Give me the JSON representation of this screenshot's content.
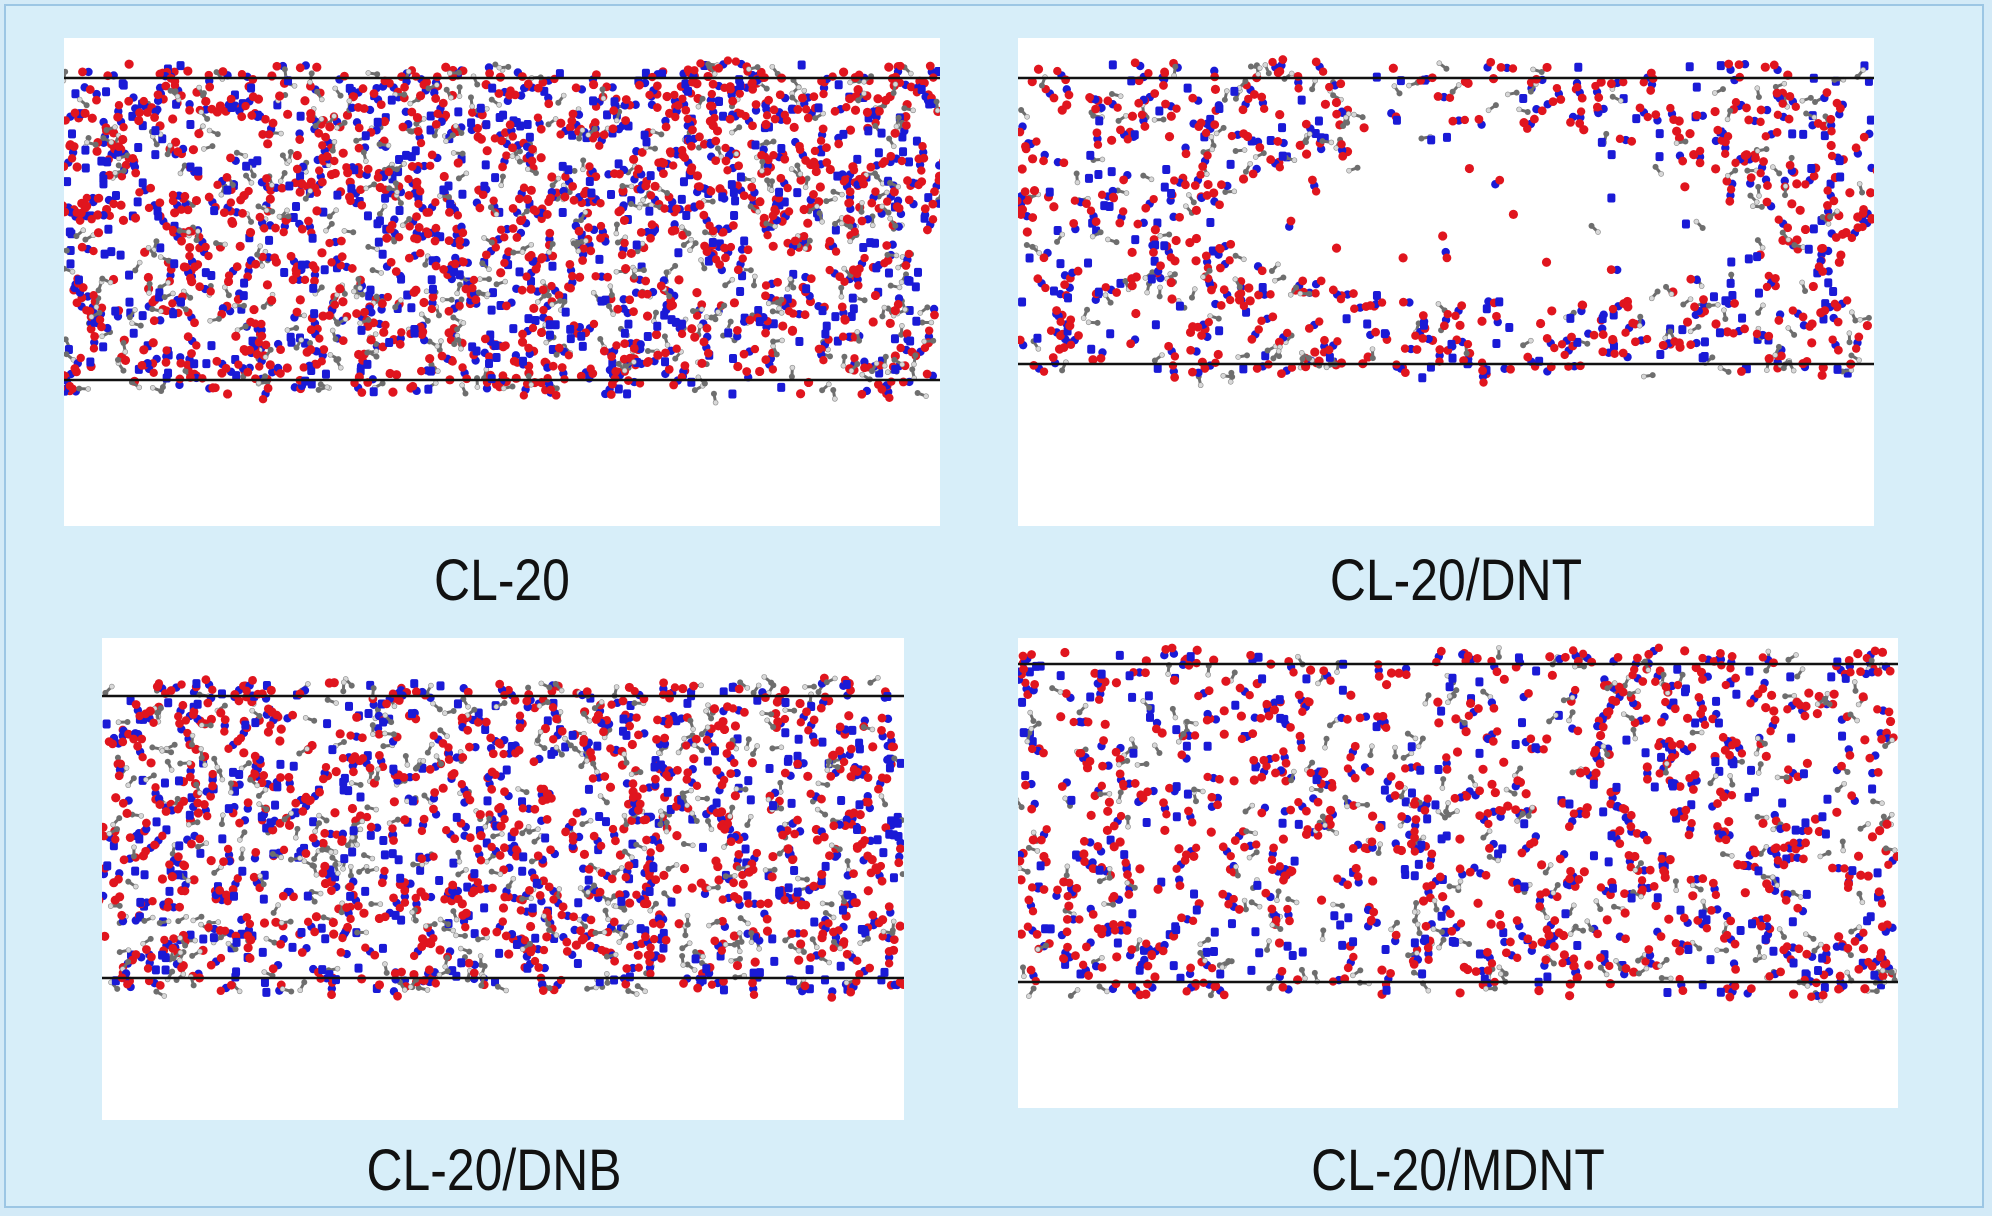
{
  "panels": [
    {
      "id": "cl20",
      "label": "CL-20",
      "density": 1.0,
      "layout": "dense"
    },
    {
      "id": "cl20-dnt",
      "label": "CL-20/DNT",
      "density": 0.55,
      "layout": "void"
    },
    {
      "id": "cl20-dnb",
      "label": "CL-20/DNB",
      "density": 0.78,
      "layout": "uniform"
    },
    {
      "id": "cl20-mdnt",
      "label": "CL-20/MDNT",
      "density": 0.62,
      "layout": "uniform"
    }
  ],
  "colors": {
    "background": "#d7eef9",
    "border": "#9cc6e4",
    "oxygen": "#e0151e",
    "nitrogen": "#1a1ad6",
    "carbon": "#6e6e6e",
    "hydrogen": "#d8d8d8",
    "cell_line": "#111111"
  }
}
